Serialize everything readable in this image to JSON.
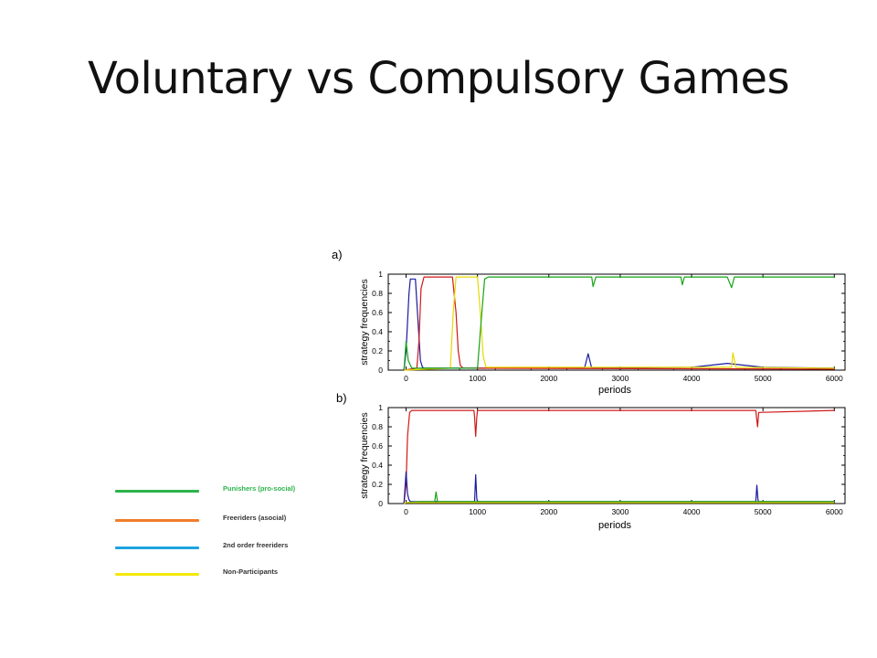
{
  "slide": {
    "title": "Voluntary vs Compulsory Games"
  },
  "legend": {
    "items": [
      {
        "label": "Punishers  (pro-social)",
        "color": "#2db34a",
        "text_color": "#2db34a"
      },
      {
        "label": "Freeriders  (asocial)",
        "color": "#f07d2a",
        "text_color": "#333333"
      },
      {
        "label": "2nd order freeriders",
        "color": "#1ea3e0",
        "text_color": "#333333"
      },
      {
        "label": "Non-Participants",
        "color": "#f5e80c",
        "text_color": "#333333"
      }
    ]
  },
  "chart_data": [
    {
      "type": "line",
      "panel_label": "a)",
      "xlabel": "periods",
      "ylabel": "strategy frequencies",
      "xlim": [
        -250,
        6150
      ],
      "ylim": [
        0,
        1
      ],
      "xticks": [
        0,
        1000,
        2000,
        3000,
        4000,
        5000,
        6000
      ],
      "yticks": [
        0,
        0.2,
        0.4,
        0.6,
        0.8,
        1
      ],
      "ytick_labels": [
        "0",
        "0.2",
        "0.4",
        "0.6",
        "0.8",
        "1"
      ],
      "grid": false,
      "series": [
        {
          "color": "#1a1aa0",
          "x": [
            -30,
            0,
            40,
            60,
            130,
            160,
            200,
            230,
            260,
            1000,
            2500,
            2550,
            2600,
            4000,
            4500,
            5000,
            6000
          ],
          "y": [
            0,
            0.2,
            0.8,
            0.95,
            0.95,
            0.6,
            0.1,
            0.03,
            0.02,
            0.02,
            0.02,
            0.17,
            0.02,
            0.03,
            0.07,
            0.03,
            0.02
          ]
        },
        {
          "color": "#d01818",
          "x": [
            -30,
            150,
            180,
            210,
            250,
            650,
            700,
            730,
            760,
            800,
            6000
          ],
          "y": [
            0,
            0.02,
            0.3,
            0.85,
            0.97,
            0.97,
            0.6,
            0.2,
            0.05,
            0.02,
            0.01
          ]
        },
        {
          "color": "#e8d800",
          "x": [
            -30,
            620,
            660,
            700,
            1000,
            1040,
            1080,
            1120,
            3000,
            4560,
            4580,
            4620,
            6000
          ],
          "y": [
            0,
            0.02,
            0.6,
            0.97,
            0.97,
            0.6,
            0.15,
            0.03,
            0.03,
            0.03,
            0.18,
            0.03,
            0.02
          ]
        },
        {
          "color": "#16a316",
          "x": [
            -30,
            0,
            30,
            80,
            1000,
            1050,
            1100,
            1150,
            2000,
            2600,
            2620,
            2660,
            3000,
            3850,
            3870,
            3900,
            4500,
            4560,
            4600,
            6000
          ],
          "y": [
            0,
            0.3,
            0.1,
            0.02,
            0.02,
            0.5,
            0.95,
            0.97,
            0.97,
            0.97,
            0.87,
            0.97,
            0.97,
            0.97,
            0.89,
            0.97,
            0.97,
            0.86,
            0.97,
            0.97
          ]
        }
      ]
    },
    {
      "type": "line",
      "panel_label": "b)",
      "xlabel": "periods",
      "ylabel": "strategy frequencies",
      "xlim": [
        -250,
        6150
      ],
      "ylim": [
        0,
        1
      ],
      "xticks": [
        0,
        1000,
        2000,
        3000,
        4000,
        5000,
        6000
      ],
      "yticks": [
        0,
        0.2,
        0.4,
        0.6,
        0.8,
        1
      ],
      "ytick_labels": [
        "0",
        "0.2",
        "0.4",
        "0.6",
        "0.8",
        "1"
      ],
      "grid": false,
      "series": [
        {
          "color": "#d01818",
          "x": [
            -30,
            0,
            20,
            50,
            80,
            950,
            960,
            975,
            990,
            1000,
            4900,
            4910,
            4925,
            4940,
            6000
          ],
          "y": [
            0,
            0.2,
            0.7,
            0.95,
            0.97,
            0.97,
            0.9,
            0.7,
            0.9,
            0.97,
            0.97,
            0.9,
            0.8,
            0.95,
            0.97
          ]
        },
        {
          "color": "#1a1aa0",
          "x": [
            -30,
            0,
            20,
            40,
            60,
            960,
            975,
            990,
            1000,
            4900,
            4915,
            4930,
            4940,
            6000
          ],
          "y": [
            0,
            0.33,
            0.1,
            0.04,
            0.02,
            0.02,
            0.3,
            0.05,
            0.02,
            0.02,
            0.19,
            0.04,
            0.02,
            0.02
          ]
        },
        {
          "color": "#16a316",
          "x": [
            -30,
            0,
            200,
            400,
            420,
            440,
            1000,
            3000,
            6000
          ],
          "y": [
            0,
            0.01,
            0.02,
            0.02,
            0.12,
            0.02,
            0.02,
            0.02,
            0.02
          ]
        },
        {
          "color": "#e8d800",
          "x": [
            -30,
            0,
            6000
          ],
          "y": [
            0,
            0.01,
            0.01
          ]
        }
      ]
    }
  ]
}
